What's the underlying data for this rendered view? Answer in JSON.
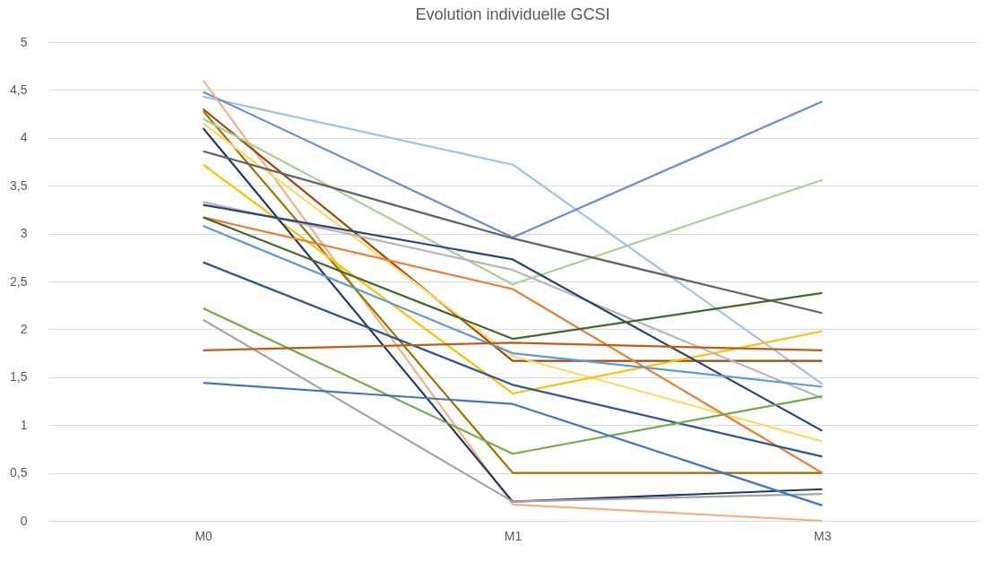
{
  "chart_data": {
    "type": "line",
    "title": "Evolution individuelle GCSI",
    "categories": [
      "M0",
      "M1",
      "M3"
    ],
    "ylim": [
      0,
      5
    ],
    "yticks": [
      0,
      {
        "value": 0.5,
        "label": "0,5"
      },
      1,
      {
        "value": 1.5,
        "label": "1,5"
      },
      2,
      {
        "value": 2.5,
        "label": "2,5"
      },
      3,
      {
        "value": 3.5,
        "label": "3,5"
      },
      4,
      {
        "value": 4.5,
        "label": "4,5"
      },
      5
    ],
    "grid": "y",
    "legend": false,
    "series": [
      {
        "color": "#9dc3e6",
        "values": [
          4.43,
          3.72,
          1.43
        ]
      },
      {
        "color": "#698ed0",
        "values": [
          4.48,
          2.96,
          4.38
        ]
      },
      {
        "color": "#f4b183",
        "values": [
          4.6,
          0.17,
          0.0
        ]
      },
      {
        "color": "#9e480e",
        "values": [
          4.3,
          1.67,
          1.67
        ]
      },
      {
        "color": "#997300",
        "values": [
          4.28,
          0.5,
          0.5
        ]
      },
      {
        "color": "#a9d18e",
        "values": [
          4.2,
          2.47,
          3.56
        ]
      },
      {
        "color": "#ffd966",
        "values": [
          4.15,
          1.72,
          0.83
        ]
      },
      {
        "color": "#ffc000",
        "values": [
          3.72,
          1.33,
          1.98
        ]
      },
      {
        "color": "#203864",
        "values": [
          4.1,
          0.2,
          0.33
        ]
      },
      {
        "color": "#636363",
        "values": [
          3.86,
          2.95,
          2.17
        ]
      },
      {
        "color": "#b7b7b7",
        "values": [
          3.33,
          2.62,
          1.28
        ]
      },
      {
        "color": "#264478",
        "values": [
          3.3,
          2.73,
          0.94
        ]
      },
      {
        "color": "#ed7d31",
        "values": [
          3.17,
          2.42,
          0.5
        ]
      },
      {
        "color": "#43682b",
        "values": [
          3.17,
          1.9,
          2.38
        ]
      },
      {
        "color": "#5b9bd5",
        "values": [
          3.08,
          1.75,
          1.4
        ]
      },
      {
        "color": "#2f5597",
        "values": [
          2.7,
          1.42,
          0.67
        ]
      },
      {
        "color": "#70ad47",
        "values": [
          2.22,
          0.7,
          1.3
        ]
      },
      {
        "color": "#a5a5a5",
        "values": [
          2.1,
          0.2,
          0.28
        ]
      },
      {
        "color": "#c55a11",
        "values": [
          1.78,
          1.86,
          1.78
        ]
      },
      {
        "color": "#4472c4",
        "values": [
          1.44,
          1.22,
          0.16
        ]
      }
    ]
  }
}
